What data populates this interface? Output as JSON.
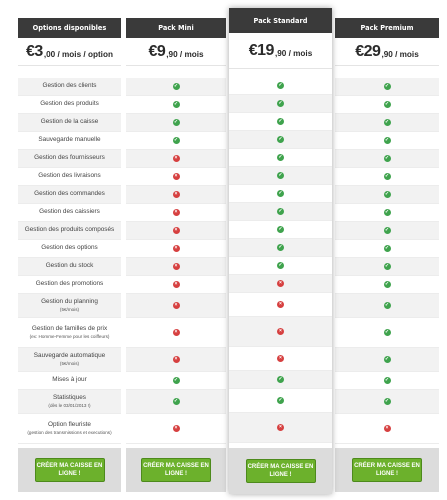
{
  "columns": {
    "options": {
      "title": "Options disponibles",
      "price_big": "€3",
      "price_rest": ",00 / mois / option",
      "cta": "CRÉER MA CAISSE EN LIGNE !"
    },
    "mini": {
      "title": "Pack Mini",
      "price_big": "€9",
      "price_rest": ",90 / mois",
      "cta": "CRÉER MA CAISSE EN LIGNE !"
    },
    "standard": {
      "title": "Pack Standard",
      "price_big": "€19",
      "price_rest": ",90 / mois",
      "cta": "CRÉER MA CAISSE EN LIGNE !"
    },
    "premium": {
      "title": "Pack Premium",
      "price_big": "€29",
      "price_rest": ",90 / mois",
      "cta": "CRÉER MA CAISSE EN LIGNE !"
    }
  },
  "features": [
    {
      "label": "Gestion des clients",
      "sub": "",
      "mini": true,
      "standard": true,
      "premium": true
    },
    {
      "label": "Gestion des produits",
      "sub": "",
      "mini": true,
      "standard": true,
      "premium": true
    },
    {
      "label": "Gestion de la caisse",
      "sub": "",
      "mini": true,
      "standard": true,
      "premium": true
    },
    {
      "label": "Sauvegarde manuelle",
      "sub": "",
      "mini": true,
      "standard": true,
      "premium": true
    },
    {
      "label": "Gestion des fournisseurs",
      "sub": "",
      "mini": false,
      "standard": true,
      "premium": true
    },
    {
      "label": "Gestion des livraisons",
      "sub": "",
      "mini": false,
      "standard": true,
      "premium": true
    },
    {
      "label": "Gestion des commandes",
      "sub": "",
      "mini": false,
      "standard": true,
      "premium": true
    },
    {
      "label": "Gestion des caissiers",
      "sub": "",
      "mini": false,
      "standard": true,
      "premium": true
    },
    {
      "label": "Gestion des produits composés",
      "sub": "",
      "mini": false,
      "standard": true,
      "premium": true
    },
    {
      "label": "Gestion des options",
      "sub": "",
      "mini": false,
      "standard": true,
      "premium": true
    },
    {
      "label": "Gestion du stock",
      "sub": "",
      "mini": false,
      "standard": true,
      "premium": true
    },
    {
      "label": "Gestion des promotions",
      "sub": "",
      "mini": false,
      "standard": false,
      "premium": true
    },
    {
      "label": "Gestion du planning",
      "sub": "(5€/mois)",
      "mini": false,
      "standard": false,
      "premium": true
    },
    {
      "label": "Gestion de familles de prix",
      "sub": "(ex: Homme-Femme pour les coiffeurs)",
      "mini": false,
      "standard": false,
      "premium": true
    },
    {
      "label": "Sauvegarde automatique",
      "sub": "(5€/mois)",
      "mini": false,
      "standard": false,
      "premium": true
    },
    {
      "label": "Mises à jour",
      "sub": "",
      "mini": true,
      "standard": true,
      "premium": true
    },
    {
      "label": "Statistiques",
      "sub": "(dès le 03/01/2013 !)",
      "mini": true,
      "standard": true,
      "premium": true
    },
    {
      "label": "Option fleuriste",
      "sub": "(gestion des transmissions et executions)",
      "mini": false,
      "standard": false,
      "premium": false
    }
  ],
  "icons": {
    "check": "check-icon",
    "cross": "cross-icon"
  },
  "colors": {
    "header": "#3a3a3a",
    "check": "#3fa34d",
    "cross": "#d64040",
    "cta": "#6cb12c"
  }
}
